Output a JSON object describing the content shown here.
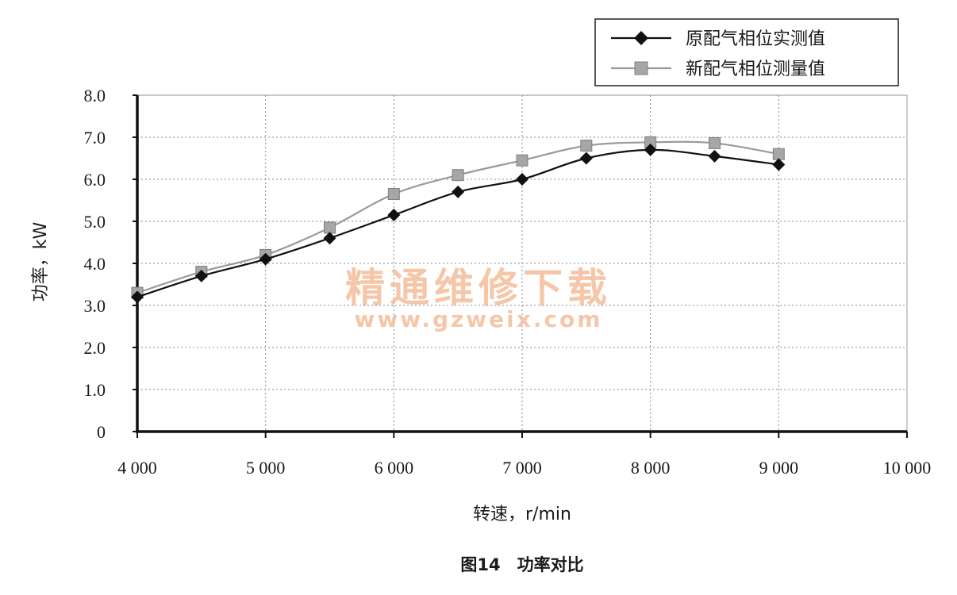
{
  "chart_data": {
    "type": "line",
    "title": "",
    "caption": "图14　功率对比",
    "xlabel": "转速，r/min",
    "ylabel": "功率，kW",
    "xlim": [
      4000,
      10000
    ],
    "ylim": [
      0,
      8
    ],
    "x_ticks": [
      4000,
      5000,
      6000,
      7000,
      8000,
      9000,
      10000
    ],
    "x_tick_labels": [
      "4 000",
      "5 000",
      "6 000",
      "7 000",
      "8 000",
      "9 000",
      "10 000"
    ],
    "y_ticks": [
      0,
      1,
      2,
      3,
      4,
      5,
      6,
      7,
      8
    ],
    "y_tick_labels": [
      "0",
      "1.0",
      "2.0",
      "3.0",
      "4.0",
      "5.0",
      "6.0",
      "7.0",
      "8.0"
    ],
    "grid": true,
    "legend_position": "top-right",
    "x": [
      4000,
      4500,
      5000,
      5500,
      6000,
      6500,
      7000,
      7500,
      8000,
      8500,
      9000
    ],
    "series": [
      {
        "name": "原配气相位实测值",
        "marker": "diamond",
        "color": "#111111",
        "values": [
          3.2,
          3.7,
          4.1,
          4.6,
          5.15,
          5.7,
          6.0,
          6.5,
          6.7,
          6.55,
          6.35
        ]
      },
      {
        "name": "新配气相位测量值",
        "marker": "square",
        "color": "#9a9a9a",
        "values": [
          3.3,
          3.8,
          4.2,
          4.85,
          5.65,
          6.1,
          6.45,
          6.8,
          6.88,
          6.86,
          6.6
        ]
      }
    ]
  },
  "watermark": {
    "text": "精通维修下载",
    "url": "www.gzweix.com"
  }
}
